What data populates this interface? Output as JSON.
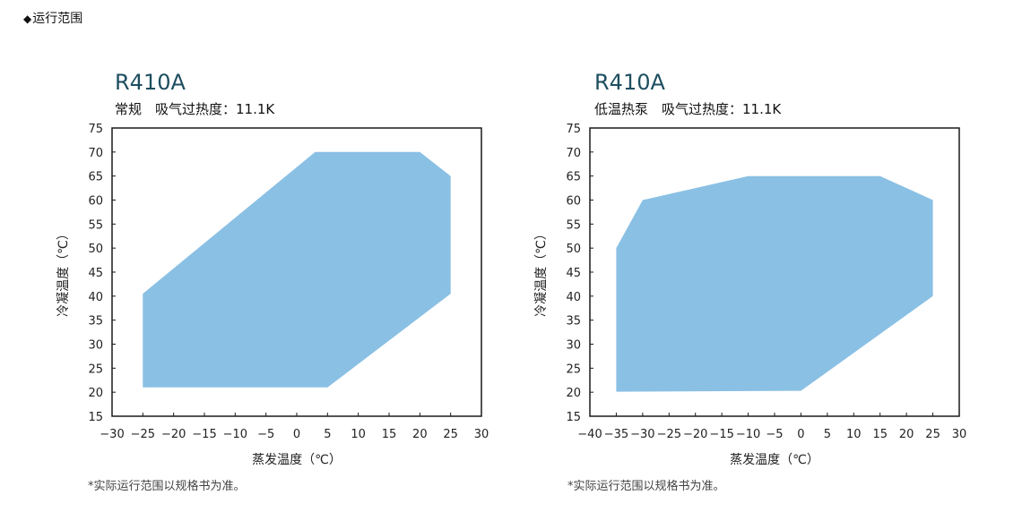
{
  "header": {
    "marker": "◆",
    "title": "运行范围"
  },
  "chart_data": [
    {
      "type": "area",
      "title": "R410A",
      "subtitle": "常规　吸气过热度：11.1K",
      "xlabel": "蒸发温度（℃）",
      "ylabel": "冷凝温度（℃）",
      "xlim": [
        -30,
        30
      ],
      "ylim": [
        15,
        75
      ],
      "xticks": [
        -30,
        -25,
        -20,
        -15,
        -10,
        -5,
        0,
        5,
        10,
        15,
        20,
        25,
        30
      ],
      "xtick_labels": [
        "−30",
        "−25",
        "−20",
        "−15",
        "−10",
        "−5",
        "0",
        "5",
        "10",
        "15",
        "20",
        "25",
        "30"
      ],
      "yticks": [
        15,
        20,
        25,
        30,
        35,
        40,
        45,
        50,
        55,
        60,
        65,
        70,
        75
      ],
      "ytick_labels": [
        "15",
        "20",
        "25",
        "30",
        "35",
        "40",
        "45",
        "50",
        "55",
        "60",
        "65",
        "70",
        "75"
      ],
      "grid": false,
      "fill_color": "#8ac0e4",
      "envelope": [
        {
          "x": -25,
          "y": 40.5
        },
        {
          "x": 3,
          "y": 70
        },
        {
          "x": 20,
          "y": 70
        },
        {
          "x": 25,
          "y": 65
        },
        {
          "x": 25,
          "y": 40.5
        },
        {
          "x": 5,
          "y": 21
        },
        {
          "x": -25,
          "y": 21
        }
      ],
      "footnote": "*实际运行范围以规格书为准。"
    },
    {
      "type": "area",
      "title": "R410A",
      "subtitle": "低温热泵　吸气过热度：11.1K",
      "xlabel": "蒸发温度（℃）",
      "ylabel": "冷凝温度（℃）",
      "xlim": [
        -40,
        30
      ],
      "ylim": [
        15,
        75
      ],
      "xticks": [
        -40,
        -35,
        -30,
        -25,
        -20,
        -15,
        -10,
        -5,
        0,
        5,
        10,
        15,
        20,
        25,
        30
      ],
      "xtick_labels": [
        "−40",
        "−35",
        "−30",
        "−25",
        "−20",
        "−15",
        "−10",
        "−5",
        "0",
        "5",
        "10",
        "15",
        "20",
        "25",
        "30"
      ],
      "yticks": [
        15,
        20,
        25,
        30,
        35,
        40,
        45,
        50,
        55,
        60,
        65,
        70,
        75
      ],
      "ytick_labels": [
        "15",
        "20",
        "25",
        "30",
        "35",
        "40",
        "45",
        "50",
        "55",
        "60",
        "65",
        "70",
        "75"
      ],
      "grid": false,
      "fill_color": "#8ac0e4",
      "envelope": [
        {
          "x": -35,
          "y": 50
        },
        {
          "x": -30,
          "y": 60
        },
        {
          "x": -10,
          "y": 65
        },
        {
          "x": 15,
          "y": 65
        },
        {
          "x": 25,
          "y": 60
        },
        {
          "x": 25,
          "y": 40
        },
        {
          "x": 0,
          "y": 20.3
        },
        {
          "x": -35,
          "y": 20.1
        }
      ],
      "footnote": "*实际运行范围以规格书为准。"
    }
  ]
}
